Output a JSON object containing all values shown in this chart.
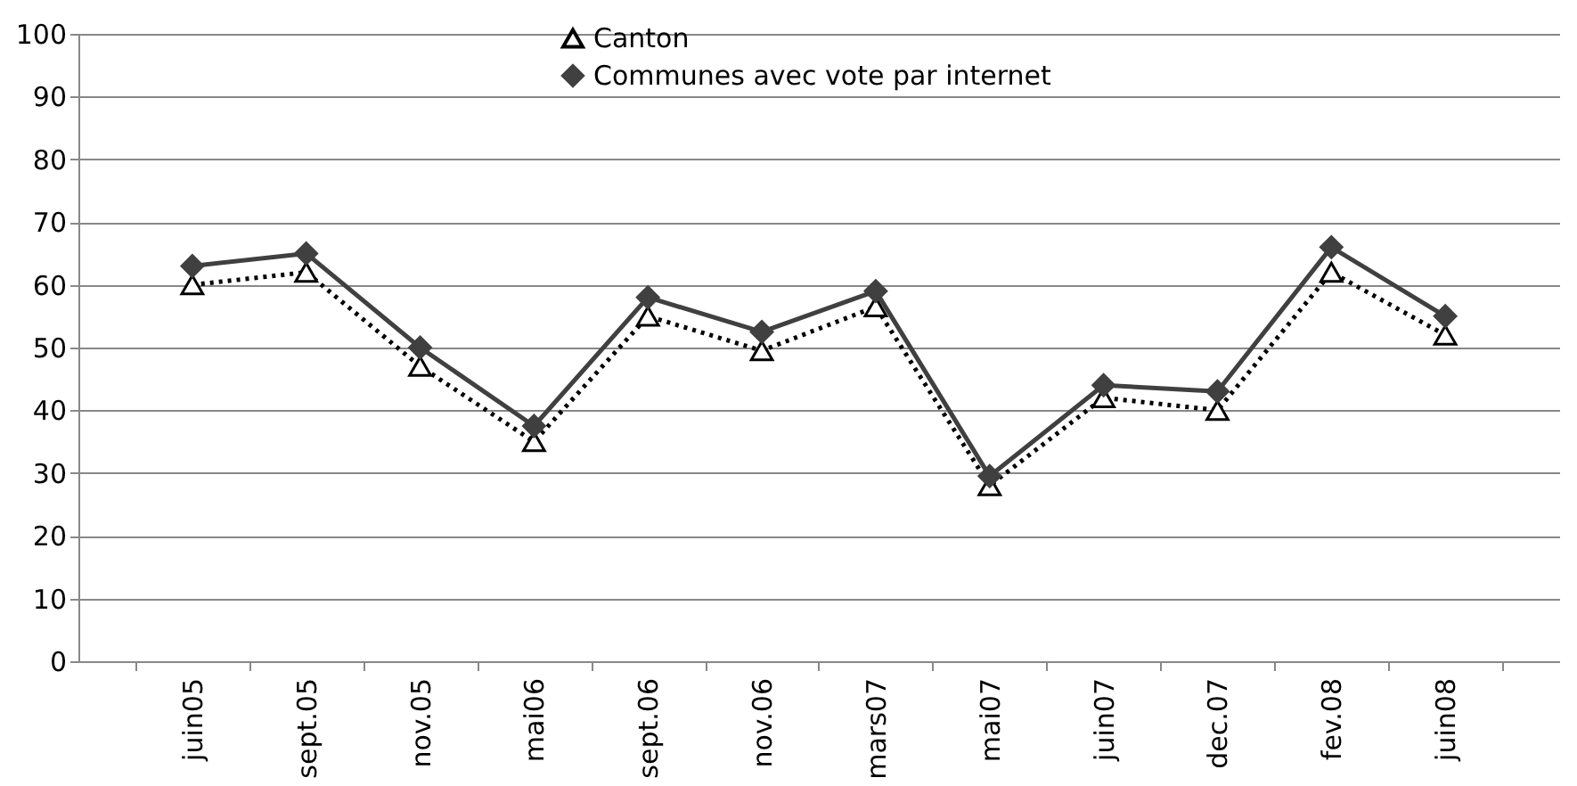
{
  "chart_data": {
    "type": "line",
    "categories": [
      "juin05",
      "sept.05",
      "nov.05",
      "mai06",
      "sept.06",
      "nov.06",
      "mars07",
      "mai07",
      "juin07",
      "dec.07",
      "fev.08",
      "juin08"
    ],
    "series": [
      {
        "name": "Canton",
        "color": "#000000",
        "marker": "triangle",
        "line_style": "dotted",
        "values": [
          60,
          62,
          47,
          35,
          55,
          49.5,
          56.5,
          28,
          42,
          40,
          62,
          52
        ]
      },
      {
        "name": "Communes avec vote par internet",
        "color": "#404040",
        "marker": "diamond",
        "line_style": "solid",
        "values": [
          63,
          65,
          50,
          37.5,
          58,
          52.5,
          59,
          29.5,
          44,
          43,
          66,
          55
        ]
      }
    ],
    "ylim": [
      0,
      100
    ],
    "yticks": [
      0,
      10,
      20,
      30,
      40,
      50,
      60,
      70,
      80,
      90,
      100
    ],
    "grid": "y",
    "legend": "top"
  }
}
